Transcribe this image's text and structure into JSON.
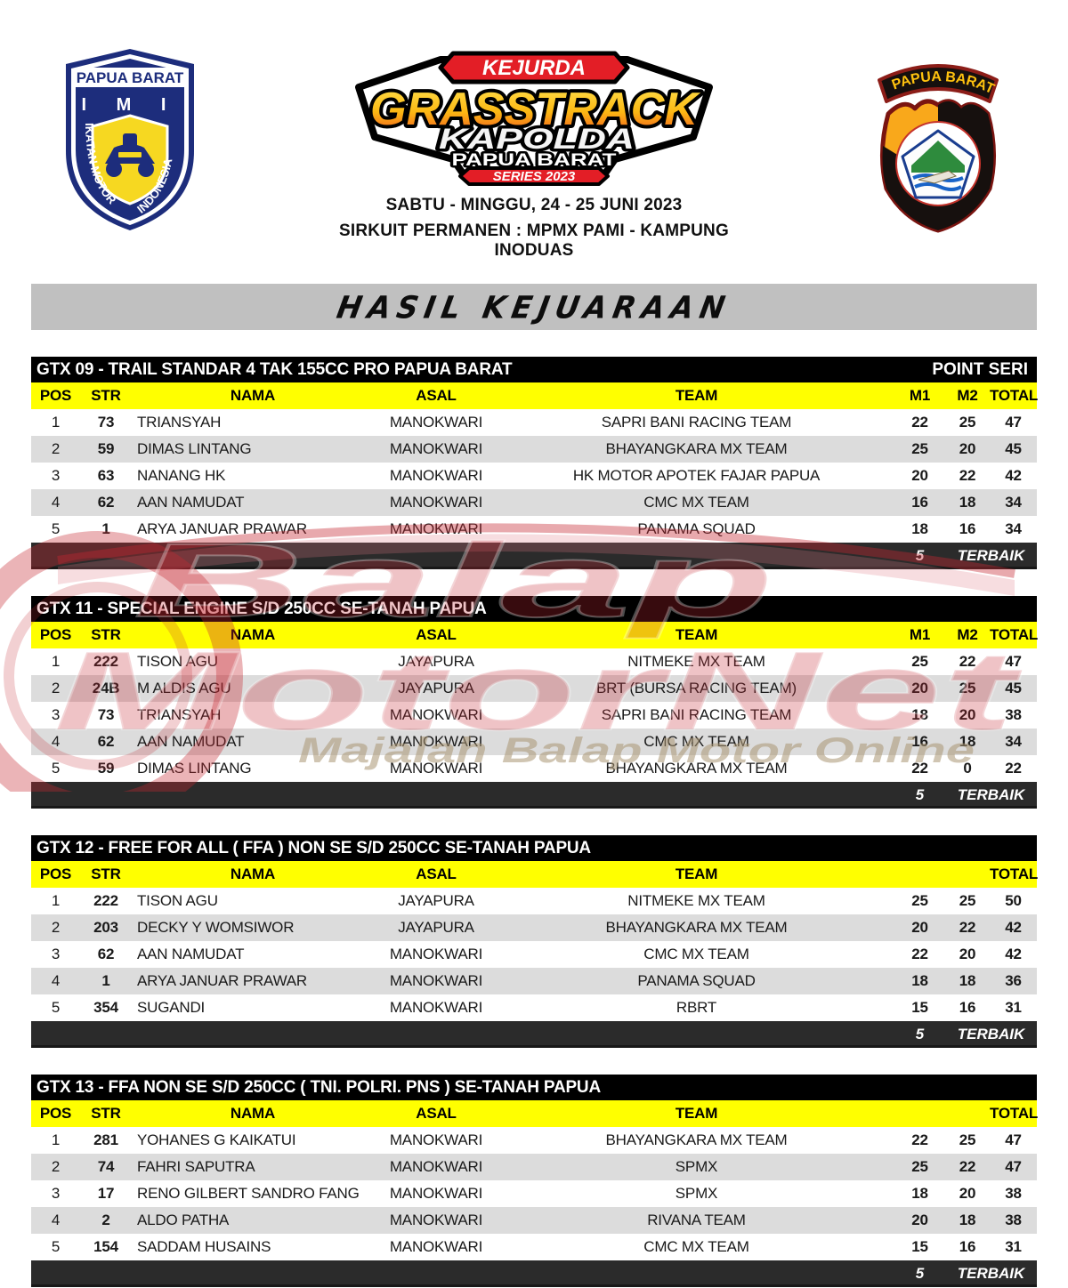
{
  "header": {
    "imi_badge": {
      "region": "PAPUA BARAT",
      "initials": "I M I",
      "left_curve": "IKATAN MOTOR",
      "right_curve": "INDONESIA"
    },
    "event_logo": {
      "kejurda": "KEJURDA",
      "grasstrack": "GRASSTRACK",
      "kapolda": "KAPOLDA",
      "papua_barat": "PAPUA BARAT",
      "series": "SERIES 2023"
    },
    "police_badge": {
      "banner": "PAPUA BARAT"
    },
    "date_line": "SABTU - MINGGU, 24 - 25 JUNI 2023",
    "venue_line": "SIRKUIT PERMANEN : MPMX PAMI - KAMPUNG INODUAS"
  },
  "page_title": "HASIL KEJUARAAN",
  "watermark": {
    "word1": "Balap",
    "word2": "MotorNet",
    "subtitle": "Majalah Balap Motor Online"
  },
  "colors": {
    "header_yellow": "#ffff00",
    "section_black": "#000000",
    "footer_dark": "#2b2b2b",
    "row_alt_gray": "#dcdcdc",
    "title_bar_gray": "#c0c0c0",
    "watermark_red": "#c42531",
    "logo_red": "#e31e26",
    "badge_navy": "#1d2d7c",
    "badge_yellow": "#f6d821",
    "police_gold": "#f9a81b"
  },
  "tables": [
    {
      "title": "GTX 09 - TRAIL STANDAR 4 TAK 155CC PRO PAPUA BARAT",
      "title_right": "POINT SERI",
      "columns": [
        "POS",
        "STR",
        "NAMA",
        "ASAL",
        "TEAM",
        "M1",
        "M2",
        "TOTAL"
      ],
      "rows": [
        [
          "1",
          "73",
          "TRIANSYAH",
          "MANOKWARI",
          "SAPRI BANI RACING TEAM",
          "22",
          "25",
          "47"
        ],
        [
          "2",
          "59",
          "DIMAS LINTANG",
          "MANOKWARI",
          "BHAYANGKARA MX TEAM",
          "25",
          "20",
          "45"
        ],
        [
          "3",
          "63",
          "NANANG HK",
          "MANOKWARI",
          "HK MOTOR APOTEK FAJAR PAPUA",
          "20",
          "22",
          "42"
        ],
        [
          "4",
          "62",
          "AAN NAMUDAT",
          "MANOKWARI",
          "CMC MX TEAM",
          "16",
          "18",
          "34"
        ],
        [
          "5",
          "1",
          "ARYA JANUAR PRAWAR",
          "MANOKWARI",
          "PANAMA SQUAD",
          "18",
          "16",
          "34"
        ]
      ],
      "footer": {
        "count": "5",
        "label": "TERBAIK"
      }
    },
    {
      "title": "GTX 11 - SPECIAL ENGINE S/D 250CC SE-TANAH PAPUA",
      "title_right": "",
      "columns": [
        "POS",
        "STR",
        "NAMA",
        "ASAL",
        "TEAM",
        "M1",
        "M2",
        "TOTAL"
      ],
      "rows": [
        [
          "1",
          "222",
          "TISON AGU",
          "JAYAPURA",
          "NITMEKE MX TEAM",
          "25",
          "22",
          "47"
        ],
        [
          "2",
          "24B",
          "M ALDIS AGU",
          "JAYAPURA",
          "BRT (BURSA RACING TEAM)",
          "20",
          "25",
          "45"
        ],
        [
          "3",
          "73",
          "TRIANSYAH",
          "MANOKWARI",
          "SAPRI BANI RACING TEAM",
          "18",
          "20",
          "38"
        ],
        [
          "4",
          "62",
          "AAN NAMUDAT",
          "MANOKWARI",
          "CMC MX TEAM",
          "16",
          "18",
          "34"
        ],
        [
          "5",
          "59",
          "DIMAS LINTANG",
          "MANOKWARI",
          "BHAYANGKARA MX TEAM",
          "22",
          "0",
          "22"
        ]
      ],
      "footer": {
        "count": "5",
        "label": "TERBAIK"
      }
    },
    {
      "title": "GTX 12 - FREE FOR ALL ( FFA ) NON SE S/D 250CC SE-TANAH PAPUA",
      "title_right": "",
      "columns": [
        "POS",
        "STR",
        "NAMA",
        "ASAL",
        "TEAM",
        "",
        "",
        "TOTAL"
      ],
      "rows": [
        [
          "1",
          "222",
          "TISON AGU",
          "JAYAPURA",
          "NITMEKE MX TEAM",
          "25",
          "25",
          "50"
        ],
        [
          "2",
          "203",
          "DECKY Y WOMSIWOR",
          "JAYAPURA",
          "BHAYANGKARA MX TEAM",
          "20",
          "22",
          "42"
        ],
        [
          "3",
          "62",
          "AAN NAMUDAT",
          "MANOKWARI",
          "CMC MX TEAM",
          "22",
          "20",
          "42"
        ],
        [
          "4",
          "1",
          "ARYA JANUAR PRAWAR",
          "MANOKWARI",
          "PANAMA SQUAD",
          "18",
          "18",
          "36"
        ],
        [
          "5",
          "354",
          "SUGANDI",
          "MANOKWARI",
          "RBRT",
          "15",
          "16",
          "31"
        ]
      ],
      "footer": {
        "count": "5",
        "label": "TERBAIK"
      }
    },
    {
      "title": "GTX 13 - FFA NON SE S/D 250CC ( TNI. POLRI. PNS ) SE-TANAH PAPUA",
      "title_right": "",
      "columns": [
        "POS",
        "STR",
        "NAMA",
        "ASAL",
        "TEAM",
        "",
        "",
        "TOTAL"
      ],
      "rows": [
        [
          "1",
          "281",
          "YOHANES G KAIKATUI",
          "MANOKWARI",
          "BHAYANGKARA MX TEAM",
          "22",
          "25",
          "47"
        ],
        [
          "2",
          "74",
          "FAHRI SAPUTRA",
          "MANOKWARI",
          "SPMX",
          "25",
          "22",
          "47"
        ],
        [
          "3",
          "17",
          "RENO GILBERT SANDRO FANG",
          "MANOKWARI",
          "SPMX",
          "18",
          "20",
          "38"
        ],
        [
          "4",
          "2",
          "ALDO PATHA",
          "MANOKWARI",
          "RIVANA TEAM",
          "20",
          "18",
          "38"
        ],
        [
          "5",
          "154",
          "SADDAM HUSAINS",
          "MANOKWARI",
          "CMC MX TEAM",
          "15",
          "16",
          "31"
        ]
      ],
      "footer": {
        "count": "5",
        "label": "TERBAIK"
      }
    }
  ]
}
